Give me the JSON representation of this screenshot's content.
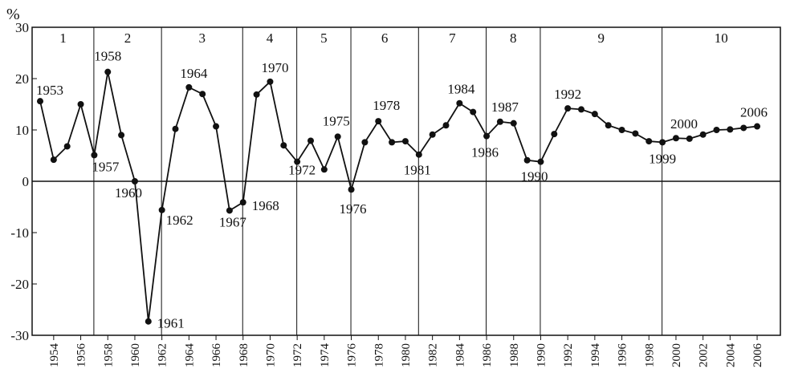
{
  "chart_data": {
    "type": "line",
    "y_unit": "%",
    "ylim": [
      -30,
      30
    ],
    "y_ticks": [
      "30",
      "20",
      "10",
      "0",
      "-10",
      "-20",
      "-30"
    ],
    "x_range": [
      1953,
      2006
    ],
    "x_ticks": [
      "1954",
      "1956",
      "1958",
      "1960",
      "1962",
      "1964",
      "1966",
      "1968",
      "1970",
      "1972",
      "1974",
      "1976",
      "1978",
      "1980",
      "1982",
      "1984",
      "1986",
      "1988",
      "1990",
      "1992",
      "1994",
      "1996",
      "1998",
      "2000",
      "2002",
      "2004",
      "2006"
    ],
    "grid": "vertical period dividers and zero line",
    "series": [
      {
        "x": [
          1953,
          1954,
          1955,
          1956,
          1957,
          1958,
          1959,
          1960,
          1961,
          1962,
          1963,
          1964,
          1965,
          1966,
          1967,
          1968,
          1969,
          1970,
          1971,
          1972,
          1973,
          1974,
          1975,
          1976,
          1977,
          1978,
          1979,
          1980,
          1981,
          1982,
          1983,
          1984,
          1985,
          1986,
          1987,
          1988,
          1989,
          1990,
          1991,
          1992,
          1993,
          1994,
          1995,
          1996,
          1997,
          1998,
          1999,
          2000,
          2001,
          2002,
          2003,
          2004,
          2005,
          2006
        ],
        "y": [
          15.6,
          4.2,
          6.8,
          15.0,
          5.1,
          21.3,
          9.0,
          0.0,
          -27.3,
          -5.6,
          10.2,
          18.3,
          17.0,
          10.7,
          -5.7,
          -4.1,
          16.9,
          19.4,
          7.0,
          3.8,
          7.9,
          2.3,
          8.7,
          -1.6,
          7.6,
          11.7,
          7.6,
          7.8,
          5.2,
          9.1,
          10.9,
          15.2,
          13.5,
          8.8,
          11.6,
          11.3,
          4.1,
          3.8,
          9.2,
          14.2,
          14.0,
          13.1,
          10.9,
          10.0,
          9.3,
          7.8,
          7.6,
          8.4,
          8.3,
          9.1,
          10.0,
          10.1,
          10.4,
          10.7
        ]
      }
    ],
    "periods": [
      {
        "label": "1",
        "start": 1953,
        "end": 1957
      },
      {
        "label": "2",
        "start": 1957,
        "end": 1962
      },
      {
        "label": "3",
        "start": 1962,
        "end": 1968
      },
      {
        "label": "4",
        "start": 1968,
        "end": 1972
      },
      {
        "label": "5",
        "start": 1972,
        "end": 1976
      },
      {
        "label": "6",
        "start": 1976,
        "end": 1981
      },
      {
        "label": "7",
        "start": 1981,
        "end": 1986
      },
      {
        "label": "8",
        "start": 1986,
        "end": 1990
      },
      {
        "label": "9",
        "start": 1990,
        "end": 1999
      },
      {
        "label": "10",
        "start": 1999,
        "end": 2006
      }
    ],
    "annotations": [
      {
        "text": "1953",
        "x": 1953
      },
      {
        "text": "1957",
        "x": 1957
      },
      {
        "text": "1958",
        "x": 1958
      },
      {
        "text": "1960",
        "x": 1960
      },
      {
        "text": "1961",
        "x": 1961
      },
      {
        "text": "1962",
        "x": 1962
      },
      {
        "text": "1964",
        "x": 1964
      },
      {
        "text": "1967",
        "x": 1967
      },
      {
        "text": "1968",
        "x": 1968
      },
      {
        "text": "1970",
        "x": 1970
      },
      {
        "text": "1972",
        "x": 1972
      },
      {
        "text": "1975",
        "x": 1975
      },
      {
        "text": "1976",
        "x": 1976
      },
      {
        "text": "1978",
        "x": 1978
      },
      {
        "text": "1981",
        "x": 1981
      },
      {
        "text": "1984",
        "x": 1984
      },
      {
        "text": "1986",
        "x": 1986
      },
      {
        "text": "1987",
        "x": 1987
      },
      {
        "text": "1990",
        "x": 1990
      },
      {
        "text": "1992",
        "x": 1992
      },
      {
        "text": "1999",
        "x": 1999
      },
      {
        "text": "2000",
        "x": 2000
      },
      {
        "text": "2006",
        "x": 2006
      }
    ]
  }
}
